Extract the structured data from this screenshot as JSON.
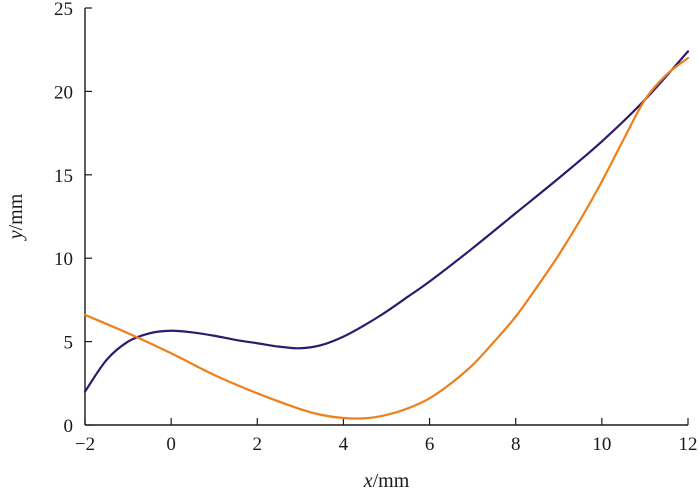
{
  "chart_data": {
    "type": "line",
    "xlabel": {
      "var": "x",
      "unit": "/mm"
    },
    "ylabel": {
      "var": "y",
      "unit": "/mm"
    },
    "xlim": [
      -2,
      12
    ],
    "ylim": [
      0,
      25
    ],
    "xticks": [
      -2,
      0,
      2,
      4,
      6,
      8,
      10,
      12
    ],
    "yticks": [
      0,
      5,
      10,
      15,
      20,
      25
    ],
    "xtick_labels": [
      "−2",
      "0",
      "2",
      "4",
      "6",
      "8",
      "10",
      "12"
    ],
    "ytick_labels": [
      "0",
      "5",
      "10",
      "15",
      "20",
      "25"
    ],
    "grid": false,
    "series": [
      {
        "color": "#2e1a6e",
        "x": [
          -2,
          -1.5,
          -1,
          -0.5,
          0,
          0.5,
          1,
          1.5,
          2,
          2.5,
          3,
          3.5,
          4,
          4.5,
          5,
          5.5,
          6,
          7,
          8,
          9,
          10,
          11,
          12
        ],
        "y": [
          2.0,
          3.9,
          5.0,
          5.5,
          5.65,
          5.55,
          5.35,
          5.1,
          4.9,
          4.7,
          4.6,
          4.8,
          5.3,
          6.0,
          6.8,
          7.7,
          8.6,
          10.6,
          12.7,
          14.8,
          17.0,
          19.5,
          22.4
        ]
      },
      {
        "color": "#ef7f1a",
        "x": [
          -2,
          -1,
          0,
          1,
          2,
          3,
          3.5,
          4,
          4.5,
          5,
          5.5,
          6,
          6.5,
          7,
          7.5,
          8,
          8.5,
          9,
          9.5,
          10,
          10.5,
          11,
          11.5,
          12
        ],
        "y": [
          6.6,
          5.5,
          4.3,
          3.0,
          1.9,
          0.95,
          0.6,
          0.42,
          0.4,
          0.6,
          1.0,
          1.6,
          2.5,
          3.6,
          5.0,
          6.5,
          8.3,
          10.2,
          12.3,
          14.6,
          17.1,
          19.5,
          21.0,
          22.0
        ]
      }
    ]
  }
}
